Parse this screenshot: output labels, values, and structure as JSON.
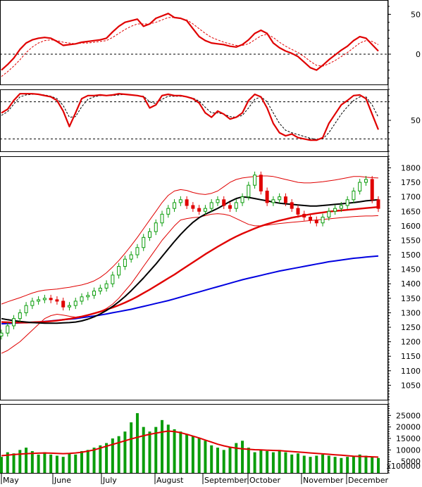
{
  "colors": {
    "price_up": "#0b9d0b",
    "price_down": "#e00000",
    "ma_black": "#000000",
    "ma_red": "#e00000",
    "ma_blue": "#0000e0",
    "band": "#e00000",
    "volume_bar": "#0b9d0b",
    "volume_ma": "#e00000",
    "axis": "#000000"
  },
  "months": [
    "May",
    "June",
    "July",
    "August",
    "September",
    "October",
    "November",
    "December"
  ],
  "chart_data": [
    {
      "panel": "macd",
      "type": "line",
      "y_ticks": [
        50,
        0
      ],
      "ylim": [
        -38,
        68
      ],
      "reference_line": 0,
      "series": [
        {
          "role": "macd",
          "values": [
            -20,
            -13,
            -5,
            6,
            14,
            18,
            20,
            21,
            20,
            16,
            11,
            12,
            13,
            15,
            16,
            17,
            18,
            20,
            28,
            35,
            40,
            42,
            44,
            35,
            38,
            45,
            48,
            51,
            46,
            45,
            42,
            32,
            22,
            17,
            14,
            13,
            12,
            10,
            9,
            12,
            18,
            26,
            30,
            26,
            14,
            8,
            4,
            1,
            -3,
            -10,
            -17,
            -20,
            -14,
            -7,
            -1,
            5,
            10,
            17,
            22,
            20,
            12,
            4
          ]
        },
        {
          "role": "signal",
          "values": [
            -28,
            -22,
            -15,
            -7,
            2,
            9,
            14,
            17,
            18,
            17,
            15,
            14,
            13,
            14,
            14,
            15,
            16,
            17,
            21,
            26,
            31,
            35,
            38,
            38,
            38,
            40,
            43,
            46,
            46,
            45,
            43,
            38,
            32,
            26,
            21,
            18,
            15,
            13,
            11,
            11,
            13,
            18,
            23,
            25,
            21,
            15,
            10,
            6,
            2,
            -3,
            -9,
            -14,
            -15,
            -12,
            -8,
            -3,
            2,
            8,
            14,
            17,
            16,
            12
          ]
        }
      ]
    },
    {
      "panel": "stochastic",
      "type": "line",
      "y_ticks": [
        50
      ],
      "ylim": [
        0,
        100
      ],
      "reference_lines": [
        20,
        80
      ],
      "series": [
        {
          "role": "k",
          "values": [
            62,
            68,
            82,
            93,
            93,
            93,
            92,
            90,
            88,
            82,
            65,
            40,
            62,
            85,
            90,
            90,
            91,
            90,
            91,
            93,
            92,
            91,
            90,
            88,
            70,
            75,
            90,
            92,
            90,
            90,
            88,
            85,
            78,
            62,
            55,
            65,
            60,
            52,
            55,
            62,
            82,
            92,
            88,
            70,
            45,
            30,
            25,
            28,
            22,
            20,
            18,
            18,
            22,
            45,
            60,
            75,
            82,
            90,
            91,
            85,
            60,
            35
          ]
        },
        {
          "role": "d",
          "values": [
            58,
            64,
            76,
            88,
            91,
            92,
            92,
            91,
            89,
            85,
            74,
            55,
            56,
            72,
            84,
            88,
            90,
            90,
            90,
            91,
            92,
            91,
            90,
            89,
            80,
            77,
            84,
            89,
            89,
            89,
            88,
            86,
            81,
            71,
            62,
            62,
            60,
            56,
            55,
            58,
            70,
            84,
            88,
            80,
            62,
            45,
            34,
            30,
            27,
            24,
            21,
            19,
            20,
            30,
            45,
            60,
            72,
            82,
            88,
            88,
            75,
            55
          ]
        }
      ]
    },
    {
      "panel": "price",
      "type": "candlestick",
      "y_ticks": [
        1800,
        1750,
        1700,
        1650,
        1600,
        1550,
        1500,
        1450,
        1400,
        1350,
        1300,
        1250,
        1200,
        1150,
        1100,
        1050
      ],
      "ylim": [
        1000,
        1840
      ],
      "series": [
        {
          "role": "close",
          "values": [
            1230,
            1255,
            1280,
            1300,
            1325,
            1340,
            1345,
            1350,
            1345,
            1340,
            1320,
            1325,
            1340,
            1355,
            1360,
            1375,
            1385,
            1400,
            1430,
            1460,
            1485,
            1500,
            1525,
            1560,
            1580,
            1610,
            1640,
            1660,
            1680,
            1690,
            1670,
            1660,
            1650,
            1660,
            1680,
            1690,
            1670,
            1660,
            1680,
            1700,
            1740,
            1775,
            1720,
            1680,
            1690,
            1700,
            1680,
            1660,
            1640,
            1630,
            1620,
            1610,
            1630,
            1650,
            1660,
            1670,
            1690,
            1720,
            1750,
            1760,
            1690,
            1660
          ]
        },
        {
          "role": "ma_black",
          "values": [
            1280,
            1276,
            1273,
            1270,
            1268,
            1266,
            1265,
            1264,
            1264,
            1264,
            1265,
            1266,
            1268,
            1272,
            1278,
            1286,
            1296,
            1308,
            1322,
            1338,
            1356,
            1376,
            1398,
            1420,
            1444,
            1468,
            1494,
            1520,
            1546,
            1570,
            1592,
            1612,
            1628,
            1640,
            1650,
            1660,
            1672,
            1684,
            1694,
            1700,
            1698,
            1694,
            1690,
            1686,
            1682,
            1678,
            1676,
            1674,
            1672,
            1670,
            1668,
            1668,
            1670,
            1672,
            1674,
            1676,
            1678,
            1680,
            1683,
            1686,
            1688,
            1690
          ]
        },
        {
          "role": "ma_red",
          "values": [
            1268,
            1267,
            1266,
            1266,
            1266,
            1267,
            1268,
            1269,
            1271,
            1273,
            1276,
            1279,
            1283,
            1287,
            1292,
            1298,
            1304,
            1311,
            1318,
            1326,
            1335,
            1345,
            1356,
            1368,
            1380,
            1393,
            1406,
            1419,
            1432,
            1446,
            1460,
            1474,
            1488,
            1502,
            1515,
            1528,
            1540,
            1552,
            1563,
            1573,
            1582,
            1591,
            1599,
            1606,
            1612,
            1618,
            1623,
            1628,
            1632,
            1636,
            1640,
            1643,
            1646,
            1649,
            1651,
            1653,
            1655,
            1657,
            1659,
            1661,
            1663,
            1665
          ]
        },
        {
          "role": "ma_blue",
          "values": [
            1262,
            1263,
            1264,
            1265,
            1266,
            1267,
            1268,
            1270,
            1272,
            1274,
            1276,
            1278,
            1280,
            1283,
            1286,
            1289,
            1292,
            1296,
            1300,
            1304,
            1308,
            1312,
            1317,
            1322,
            1327,
            1332,
            1337,
            1342,
            1348,
            1354,
            1360,
            1366,
            1372,
            1378,
            1384,
            1390,
            1396,
            1402,
            1408,
            1414,
            1419,
            1424,
            1429,
            1434,
            1439,
            1444,
            1448,
            1452,
            1456,
            1460,
            1464,
            1468,
            1472,
            1476,
            1479,
            1482,
            1485,
            1488,
            1490,
            1492,
            1494,
            1496
          ]
        },
        {
          "role": "band_upper",
          "values": [
            1330,
            1338,
            1345,
            1352,
            1360,
            1368,
            1374,
            1378,
            1380,
            1382,
            1385,
            1388,
            1392,
            1396,
            1402,
            1410,
            1422,
            1438,
            1458,
            1480,
            1505,
            1532,
            1560,
            1590,
            1620,
            1650,
            1680,
            1705,
            1720,
            1725,
            1722,
            1715,
            1710,
            1708,
            1712,
            1720,
            1735,
            1750,
            1760,
            1765,
            1768,
            1770,
            1772,
            1772,
            1770,
            1765,
            1760,
            1755,
            1750,
            1748,
            1748,
            1750,
            1752,
            1755,
            1758,
            1762,
            1766,
            1770,
            1770,
            1768,
            1766,
            1765
          ]
        },
        {
          "role": "band_lower",
          "values": [
            1160,
            1170,
            1185,
            1200,
            1220,
            1240,
            1260,
            1280,
            1290,
            1295,
            1292,
            1288,
            1285,
            1288,
            1292,
            1298,
            1305,
            1315,
            1330,
            1350,
            1375,
            1400,
            1430,
            1460,
            1490,
            1520,
            1550,
            1575,
            1600,
            1620,
            1625,
            1628,
            1630,
            1635,
            1640,
            1642,
            1640,
            1635,
            1625,
            1615,
            1605,
            1600,
            1600,
            1602,
            1605,
            1608,
            1610,
            1612,
            1614,
            1616,
            1618,
            1620,
            1622,
            1624,
            1626,
            1628,
            1630,
            1632,
            1633,
            1634,
            1634,
            1635
          ]
        }
      ]
    },
    {
      "panel": "volume",
      "type": "bar",
      "unit_label": "x100000",
      "y_ticks": [
        25000,
        20000,
        15000,
        10000,
        5000
      ],
      "ylim": [
        0,
        30000
      ],
      "series": [
        {
          "role": "volume",
          "values": [
            7000,
            9000,
            8500,
            10000,
            11000,
            9500,
            8000,
            9000,
            8000,
            7500,
            7000,
            8500,
            8000,
            9500,
            10000,
            11000,
            12000,
            13000,
            15000,
            16000,
            18000,
            22000,
            26000,
            20000,
            18000,
            20000,
            23000,
            21000,
            19000,
            18000,
            17000,
            16000,
            15000,
            14000,
            12000,
            11000,
            10000,
            11000,
            13000,
            14000,
            11000,
            9000,
            10000,
            9500,
            9000,
            10000,
            9000,
            8000,
            8500,
            7500,
            7000,
            7500,
            8000,
            7500,
            7000,
            6500,
            7000,
            7500,
            8000,
            7500,
            7000,
            6500
          ]
        },
        {
          "role": "volume_ma",
          "values": [
            7500,
            7700,
            8000,
            8200,
            8400,
            8500,
            8600,
            8700,
            8600,
            8500,
            8400,
            8500,
            8700,
            9000,
            9500,
            10000,
            10800,
            11600,
            12400,
            13200,
            14000,
            14800,
            15500,
            16200,
            16800,
            17300,
            17800,
            18200,
            18000,
            17500,
            16800,
            16000,
            15200,
            14300,
            13400,
            12500,
            11800,
            11200,
            10800,
            10500,
            10300,
            10100,
            10000,
            9900,
            9800,
            9700,
            9500,
            9300,
            9100,
            8900,
            8700,
            8500,
            8300,
            8100,
            7900,
            7700,
            7500,
            7300,
            7200,
            7100,
            7000,
            6900
          ]
        }
      ]
    }
  ]
}
